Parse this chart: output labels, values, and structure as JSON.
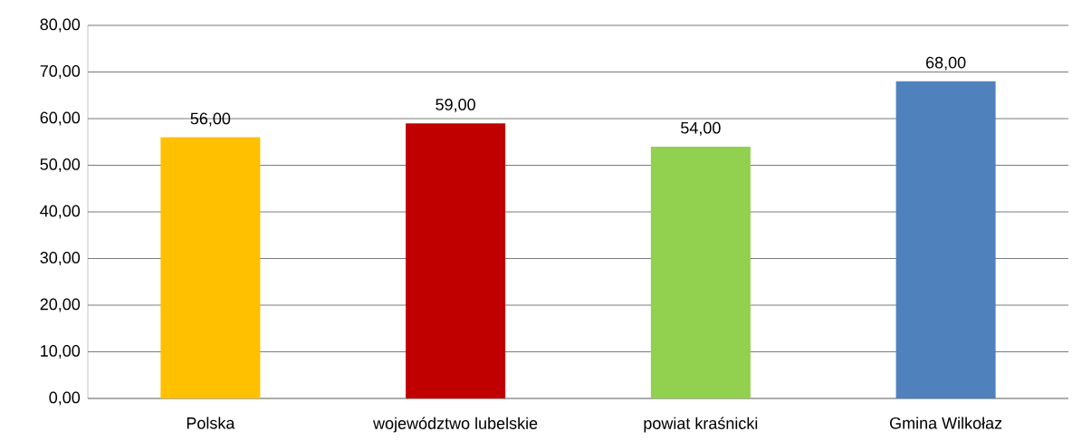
{
  "chart_data": {
    "type": "bar",
    "categories": [
      "Polska",
      "województwo lubelskie",
      "powiat kraśnicki",
      "Gmina Wilkołaz"
    ],
    "values": [
      56,
      59,
      54,
      68
    ],
    "colors": [
      "#ffc000",
      "#c00000",
      "#92d050",
      "#4f81bd"
    ],
    "value_labels": [
      "56,00",
      "59,00",
      "54,00",
      "68,00"
    ],
    "ylim": [
      0,
      80
    ],
    "yticks": [
      {
        "value": 0,
        "label": "0,00"
      },
      {
        "value": 10,
        "label": "10,00"
      },
      {
        "value": 20,
        "label": "20,00"
      },
      {
        "value": 30,
        "label": "30,00"
      },
      {
        "value": 40,
        "label": "40,00"
      },
      {
        "value": 50,
        "label": "50,00"
      },
      {
        "value": 60,
        "label": "60,00"
      },
      {
        "value": 70,
        "label": "70,00"
      },
      {
        "value": 80,
        "label": "80,00"
      }
    ],
    "grid": "y"
  }
}
